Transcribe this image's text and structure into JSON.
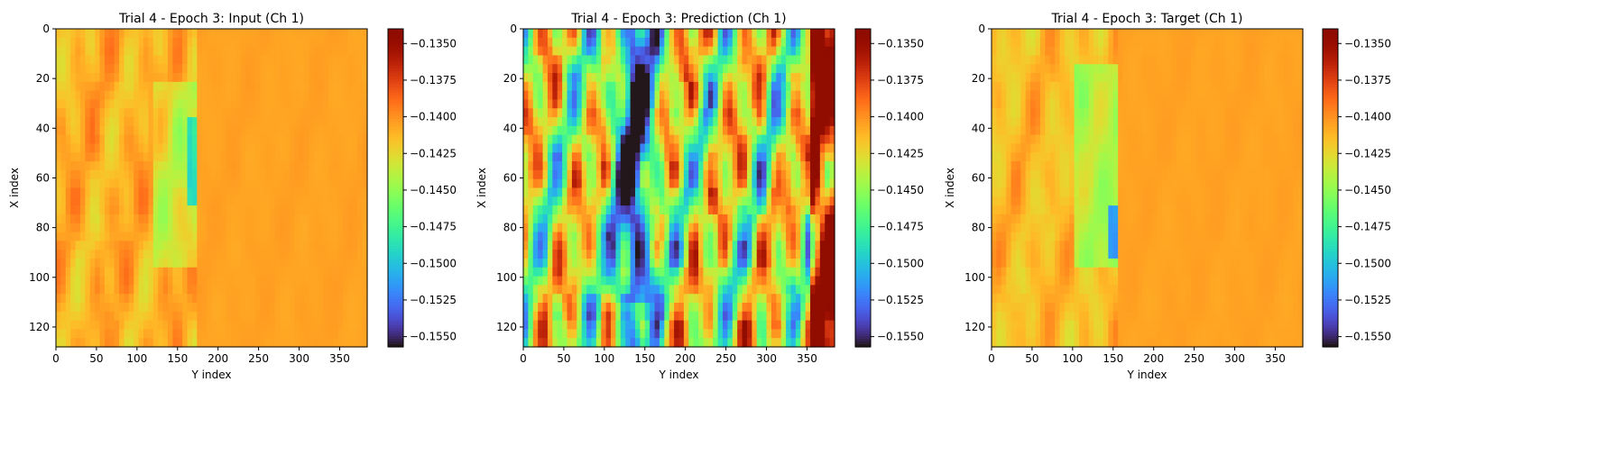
{
  "chart_data": [
    {
      "type": "heatmap",
      "title": "Trial 4 - Epoch 3: Input (Ch 1)",
      "xlabel": "Y index",
      "ylabel": "X index",
      "xlim": [
        0,
        384
      ],
      "ylim": [
        128,
        0
      ],
      "xticks": [
        0,
        50,
        100,
        150,
        200,
        250,
        300,
        350
      ],
      "yticks": [
        0,
        20,
        40,
        60,
        80,
        100,
        120
      ],
      "colormap": "turbo",
      "vmin": -0.1557,
      "vmax": -0.134,
      "colorbar_ticks": [
        -0.135,
        -0.1375,
        -0.14,
        -0.1425,
        -0.145,
        -0.1475,
        -0.15,
        -0.1525,
        -0.155
      ],
      "colorbar_tick_labels": [
        "−0.1350",
        "−0.1375",
        "−0.1400",
        "−0.1425",
        "−0.1450",
        "−0.1475",
        "−0.1500",
        "−0.1525",
        "−0.1550"
      ]
    },
    {
      "type": "heatmap",
      "title": "Trial 4 - Epoch 3: Prediction (Ch 1)",
      "xlabel": "Y index",
      "ylabel": "X index",
      "xlim": [
        0,
        384
      ],
      "ylim": [
        128,
        0
      ],
      "xticks": [
        0,
        50,
        100,
        150,
        200,
        250,
        300,
        350
      ],
      "yticks": [
        0,
        20,
        40,
        60,
        80,
        100,
        120
      ],
      "colormap": "turbo",
      "vmin": -0.1557,
      "vmax": -0.134,
      "colorbar_ticks": [
        -0.135,
        -0.1375,
        -0.14,
        -0.1425,
        -0.145,
        -0.1475,
        -0.15,
        -0.1525,
        -0.155
      ],
      "colorbar_tick_labels": [
        "−0.1350",
        "−0.1375",
        "−0.1400",
        "−0.1425",
        "−0.1450",
        "−0.1475",
        "−0.1500",
        "−0.1525",
        "−0.1550"
      ]
    },
    {
      "type": "heatmap",
      "title": "Trial 4 - Epoch 3: Target (Ch 1)",
      "xlabel": "Y index",
      "ylabel": "X index",
      "xlim": [
        0,
        384
      ],
      "ylim": [
        128,
        0
      ],
      "xticks": [
        0,
        50,
        100,
        150,
        200,
        250,
        300,
        350
      ],
      "yticks": [
        0,
        20,
        40,
        60,
        80,
        100,
        120
      ],
      "colormap": "turbo",
      "vmin": -0.1557,
      "vmax": -0.134,
      "colorbar_ticks": [
        -0.135,
        -0.1375,
        -0.14,
        -0.1425,
        -0.145,
        -0.1475,
        -0.15,
        -0.1525,
        -0.155
      ],
      "colorbar_tick_labels": [
        "−0.1350",
        "−0.1375",
        "−0.1400",
        "−0.1425",
        "−0.1450",
        "−0.1475",
        "−0.1500",
        "−0.1525",
        "−0.1550"
      ]
    }
  ]
}
